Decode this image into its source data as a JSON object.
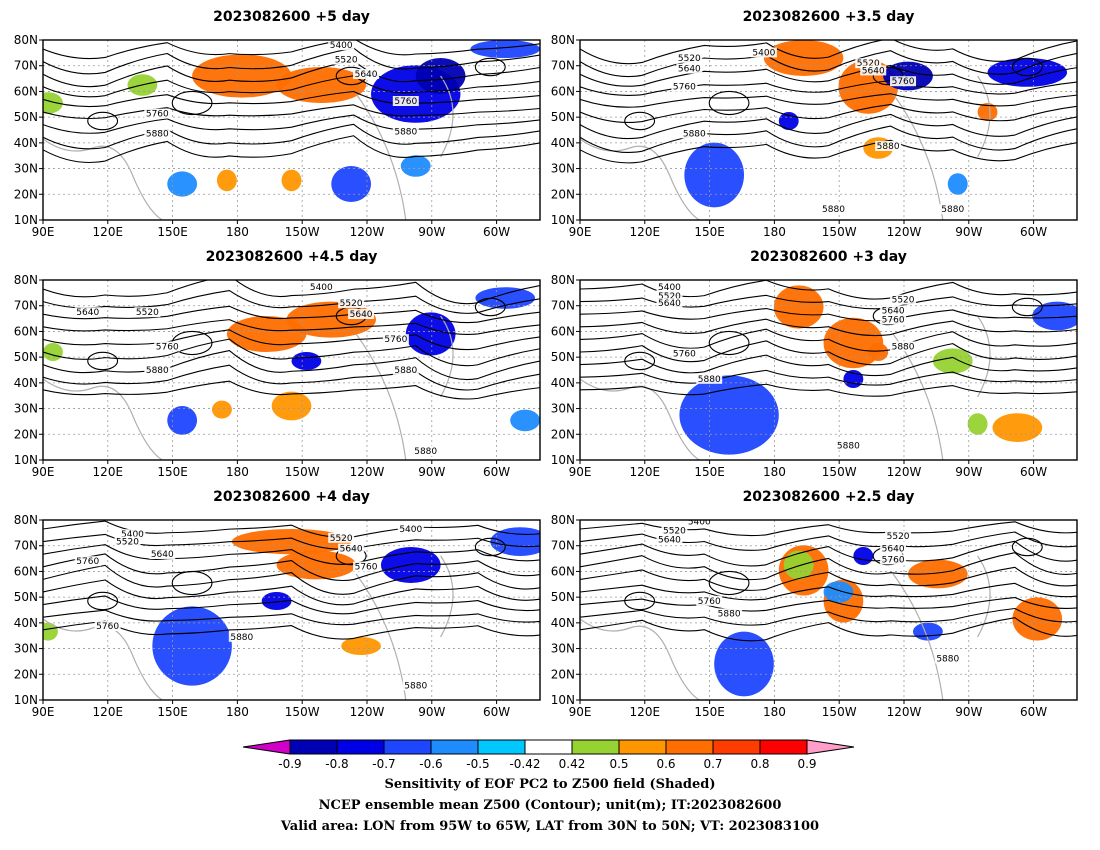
{
  "panels": [
    {
      "title": "2023082600  +5 day"
    },
    {
      "title": "2023082600  +3.5 day"
    },
    {
      "title": "2023082600  +4.5 day"
    },
    {
      "title": "2023082600  +3 day"
    },
    {
      "title": "2023082600  +4 day"
    },
    {
      "title": "2023082600  +2.5 day"
    }
  ],
  "map": {
    "lon_ticks": [
      "90E",
      "120E",
      "150E",
      "180",
      "150W",
      "120W",
      "90W",
      "60W"
    ],
    "lat_ticks": [
      "80N",
      "70N",
      "60N",
      "50N",
      "40N",
      "30N",
      "20N",
      "10N"
    ],
    "lon_range_deg": [
      90,
      320
    ],
    "lat_range_deg": [
      10,
      80
    ],
    "gridlines": true,
    "coastline_color": "#b0b0b0"
  },
  "contours": {
    "labels": [
      "5400",
      "5520",
      "5640",
      "5760",
      "5880"
    ],
    "color": "#000000",
    "panel_labels": [
      [
        "5400",
        "5520",
        "5640",
        "5760",
        "5880",
        "5760",
        "5880"
      ],
      [
        "5400",
        "5520",
        "5640",
        "5760",
        "5520",
        "5640",
        "5760",
        "5880",
        "5880",
        "5880",
        "5880"
      ],
      [
        "5400",
        "5520",
        "5640",
        "5640",
        "5520",
        "5760",
        "5880",
        "5760",
        "5880",
        "5880"
      ],
      [
        "5400",
        "5520",
        "5640",
        "5520",
        "5640",
        "5760",
        "5760",
        "5880",
        "5880",
        "5880"
      ],
      [
        "5400",
        "5520",
        "5640",
        "5760",
        "5400",
        "5520",
        "5640",
        "5760",
        "5760",
        "5880",
        "5880"
      ],
      [
        "5400",
        "5520",
        "5640",
        "5520",
        "5640",
        "5760",
        "5760",
        "5880",
        "5880"
      ]
    ]
  },
  "colorbar": {
    "ticks": [
      "-0.9",
      "-0.8",
      "-0.7",
      "-0.6",
      "-0.5",
      "-0.42",
      "0.42",
      "0.5",
      "0.6",
      "0.7",
      "0.8",
      "0.9"
    ],
    "colors": [
      "#d000c8",
      "#0000b4",
      "#0000e6",
      "#1e46ff",
      "#1e8cff",
      "#00c8ff",
      "#ffffff",
      "#96d232",
      "#ff9600",
      "#ff6e00",
      "#ff3c00",
      "#ff0000",
      "#ff9ec8"
    ]
  },
  "caption": {
    "line1": "Sensitivity of EOF PC2 to Z500 field (Shaded)",
    "line2": "NCEP ensemble mean Z500 (Contour); unit(m); IT:2023082600",
    "line3": "Valid area: LON from 95W to 65W, LAT from 30N to 50N; VT: 2023083100"
  }
}
